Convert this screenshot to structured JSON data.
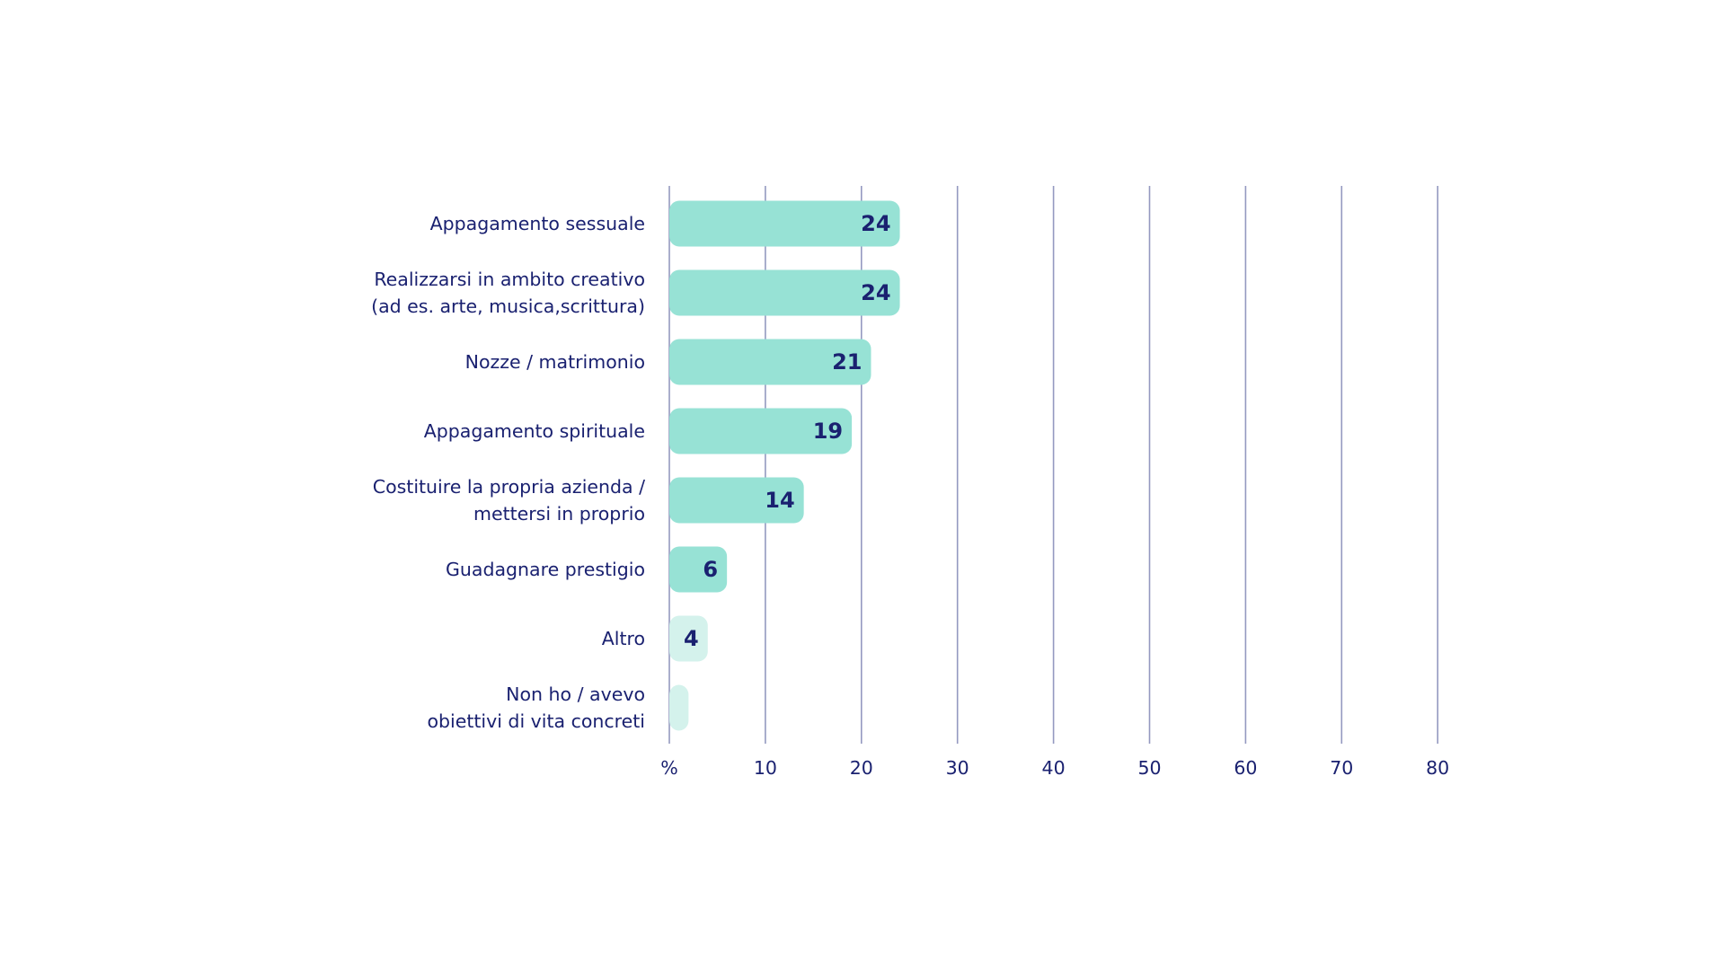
{
  "chart_data": {
    "type": "bar",
    "orientation": "horizontal",
    "categories": [
      [
        "Appagamento sessuale"
      ],
      [
        "Realizzarsi in ambito creativo",
        "(ad es. arte, musica,scrittura)"
      ],
      [
        "Nozze / matrimonio"
      ],
      [
        "Appagamento spirituale"
      ],
      [
        "Costituire la propria azienda /",
        "mettersi in proprio"
      ],
      [
        "Guadagnare prestigio"
      ],
      [
        "Altro"
      ],
      [
        "Non ho / avevo",
        "obiettivi di vita concreti"
      ]
    ],
    "values": [
      24,
      24,
      21,
      19,
      14,
      6,
      4,
      2
    ],
    "value_labels": [
      "24",
      "24",
      "21",
      "19",
      "14",
      "6",
      "4",
      ""
    ],
    "x_ticks": [
      "%",
      "10",
      "20",
      "30",
      "40",
      "50",
      "60",
      "70",
      "80"
    ],
    "x_tick_values": [
      0,
      10,
      20,
      30,
      40,
      50,
      60,
      70,
      80
    ],
    "xlim": [
      0,
      80
    ],
    "grid": true,
    "colors": {
      "bar": "#97e2d5",
      "bar_light": "#d4f2ec",
      "text": "#1a2170",
      "grid": "#9499c0"
    },
    "bar_color_keys": [
      "bar",
      "bar",
      "bar",
      "bar",
      "bar",
      "bar",
      "bar_light",
      "bar_light"
    ]
  }
}
